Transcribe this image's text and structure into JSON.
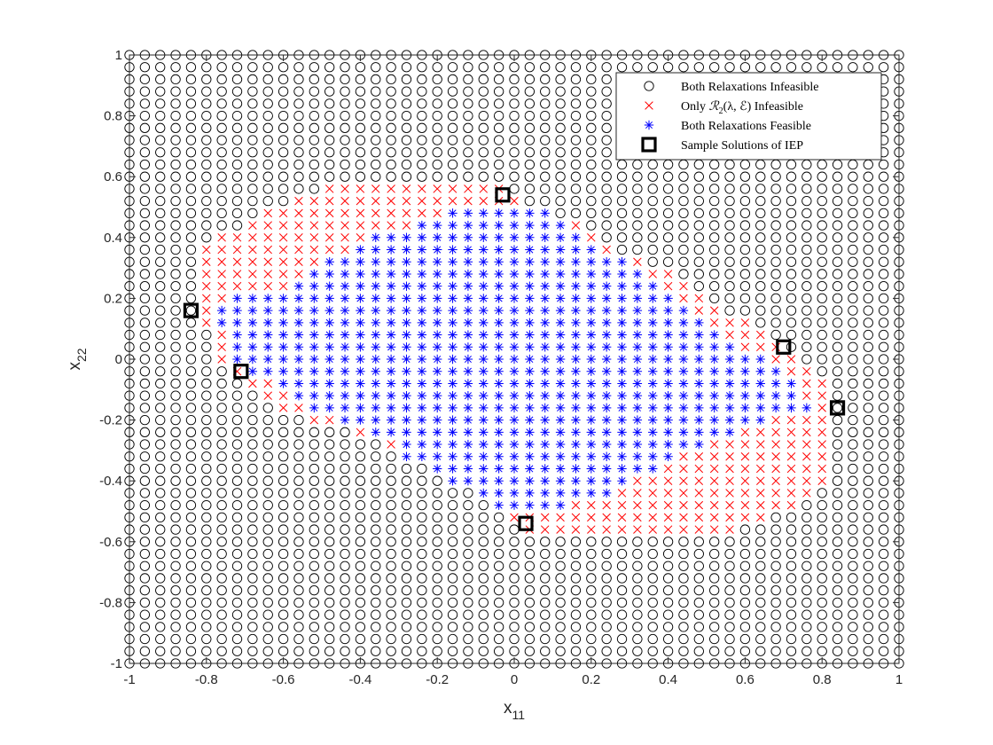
{
  "chart_data": {
    "type": "scatter",
    "title": "",
    "xlabel": {
      "base": "x",
      "sub": "11"
    },
    "ylabel": {
      "base": "x",
      "sub": "22"
    },
    "xlim": [
      -1,
      1
    ],
    "ylim": [
      -1,
      1
    ],
    "xticks": [
      "-1",
      "-0.8",
      "-0.6",
      "-0.4",
      "-0.2",
      "0",
      "0.2",
      "0.4",
      "0.6",
      "0.8",
      "1"
    ],
    "yticks": [
      "-1",
      "-0.8",
      "-0.6",
      "-0.4",
      "-0.2",
      "0",
      "0.2",
      "0.4",
      "0.6",
      "0.8",
      "1"
    ],
    "grid_step": 0.04,
    "legend_position": "top-right",
    "series": [
      {
        "name": "Both Relaxations Infeasible",
        "marker": "circle",
        "color": "#000000",
        "description": "all remaining grid points"
      },
      {
        "name": "Only R2(λ,E) Infeasible",
        "marker": "x",
        "color": "#ff0000",
        "rows": [
          {
            "y": 0.56,
            "x": [
              -0.48,
              -0.04
            ]
          },
          {
            "y": 0.52,
            "x": [
              -0.56,
              0.0
            ]
          },
          {
            "y": 0.48,
            "x": [
              -0.64,
              0.08
            ]
          },
          {
            "y": 0.44,
            "x": [
              -0.68,
              0.16
            ]
          },
          {
            "y": 0.4,
            "x": [
              -0.76,
              0.2
            ]
          },
          {
            "y": 0.36,
            "x": [
              -0.8,
              0.24
            ]
          },
          {
            "y": 0.32,
            "x": [
              -0.8,
              0.32
            ]
          },
          {
            "y": 0.28,
            "x": [
              -0.8,
              0.4
            ]
          },
          {
            "y": 0.24,
            "x": [
              -0.8,
              0.44
            ]
          },
          {
            "y": 0.2,
            "x": [
              -0.8,
              0.48
            ]
          },
          {
            "y": 0.16,
            "x": [
              -0.8,
              0.52
            ]
          },
          {
            "y": 0.12,
            "x": [
              -0.8,
              0.6
            ]
          },
          {
            "y": 0.08,
            "x": [
              -0.76,
              0.64
            ]
          },
          {
            "y": 0.04,
            "x": [
              -0.76,
              0.68
            ]
          },
          {
            "y": 0.0,
            "x": [
              -0.76,
              0.72
            ]
          },
          {
            "y": -0.04,
            "x": [
              -0.72,
              0.76
            ]
          },
          {
            "y": -0.08,
            "x": [
              -0.68,
              0.8
            ]
          },
          {
            "y": -0.12,
            "x": [
              -0.64,
              0.8
            ]
          },
          {
            "y": -0.16,
            "x": [
              -0.6,
              0.8
            ]
          },
          {
            "y": -0.2,
            "x": [
              -0.52,
              0.8
            ]
          },
          {
            "y": -0.24,
            "x": [
              -0.4,
              0.8
            ]
          },
          {
            "y": -0.28,
            "x": [
              -0.32,
              0.8
            ]
          },
          {
            "y": -0.32,
            "x": [
              -0.24,
              0.8
            ]
          },
          {
            "y": -0.36,
            "x": [
              -0.16,
              0.8
            ]
          },
          {
            "y": -0.4,
            "x": [
              -0.12,
              0.8
            ]
          },
          {
            "y": -0.44,
            "x": [
              -0.08,
              0.76
            ]
          },
          {
            "y": -0.48,
            "x": [
              -0.04,
              0.72
            ]
          },
          {
            "y": -0.52,
            "x": [
              0.0,
              0.64
            ]
          },
          {
            "y": -0.56,
            "x": [
              0.04,
              0.56
            ]
          }
        ]
      },
      {
        "name": "Both Relaxations Feasible",
        "marker": "asterisk",
        "color": "#0000ff",
        "rows": [
          {
            "y": 0.48,
            "x": [
              -0.16,
              0.08
            ]
          },
          {
            "y": 0.44,
            "x": [
              -0.24,
              0.12
            ]
          },
          {
            "y": 0.4,
            "x": [
              -0.36,
              0.16
            ]
          },
          {
            "y": 0.36,
            "x": [
              -0.4,
              0.2
            ]
          },
          {
            "y": 0.32,
            "x": [
              -0.48,
              0.28
            ]
          },
          {
            "y": 0.28,
            "x": [
              -0.52,
              0.32
            ]
          },
          {
            "y": 0.24,
            "x": [
              -0.56,
              0.36
            ]
          },
          {
            "y": 0.2,
            "x": [
              -0.72,
              0.4
            ]
          },
          {
            "y": 0.16,
            "x": [
              -0.76,
              0.44
            ]
          },
          {
            "y": 0.12,
            "x": [
              -0.76,
              0.48
            ]
          },
          {
            "y": 0.08,
            "x": [
              -0.72,
              0.52
            ]
          },
          {
            "y": 0.04,
            "x": [
              -0.72,
              0.56
            ]
          },
          {
            "y": 0.0,
            "x": [
              -0.72,
              0.64
            ]
          },
          {
            "y": -0.04,
            "x": [
              -0.68,
              0.68
            ]
          },
          {
            "y": -0.08,
            "x": [
              -0.6,
              0.72
            ]
          },
          {
            "y": -0.12,
            "x": [
              -0.56,
              0.72
            ]
          },
          {
            "y": -0.16,
            "x": [
              -0.52,
              0.76
            ]
          },
          {
            "y": -0.2,
            "x": [
              -0.44,
              0.64
            ]
          },
          {
            "y": -0.24,
            "x": [
              -0.36,
              0.56
            ]
          },
          {
            "y": -0.28,
            "x": [
              -0.28,
              0.48
            ]
          },
          {
            "y": -0.32,
            "x": [
              -0.28,
              0.4
            ]
          },
          {
            "y": -0.36,
            "x": [
              -0.2,
              0.36
            ]
          },
          {
            "y": -0.4,
            "x": [
              -0.16,
              0.28
            ]
          },
          {
            "y": -0.44,
            "x": [
              -0.08,
              0.24
            ]
          },
          {
            "y": -0.48,
            "x": [
              -0.04,
              0.12
            ]
          }
        ]
      },
      {
        "name": "Sample Solutions of IEP",
        "marker": "square",
        "color": "#000000",
        "points": [
          [
            -0.84,
            0.16
          ],
          [
            -0.71,
            -0.04
          ],
          [
            -0.03,
            0.54
          ],
          [
            0.03,
            -0.54
          ],
          [
            0.7,
            0.04
          ],
          [
            0.84,
            -0.16
          ]
        ]
      }
    ],
    "legend": {
      "entries": [
        {
          "marker": "circle",
          "color": "#000000",
          "label": "Both Relaxations Infeasible"
        },
        {
          "marker": "x",
          "color": "#ff0000",
          "label": "Only ℛ2(λ, ℰ) Infeasible",
          "math": {
            "pre": "Only ",
            "R": "ℛ",
            "sub": "2",
            "args": "(λ, ℰ)",
            "post": " Infeasible"
          }
        },
        {
          "marker": "asterisk",
          "color": "#0000ff",
          "label": "Both Relaxations Feasible"
        },
        {
          "marker": "square",
          "color": "#000000",
          "label": "Sample Solutions of IEP"
        }
      ]
    }
  }
}
